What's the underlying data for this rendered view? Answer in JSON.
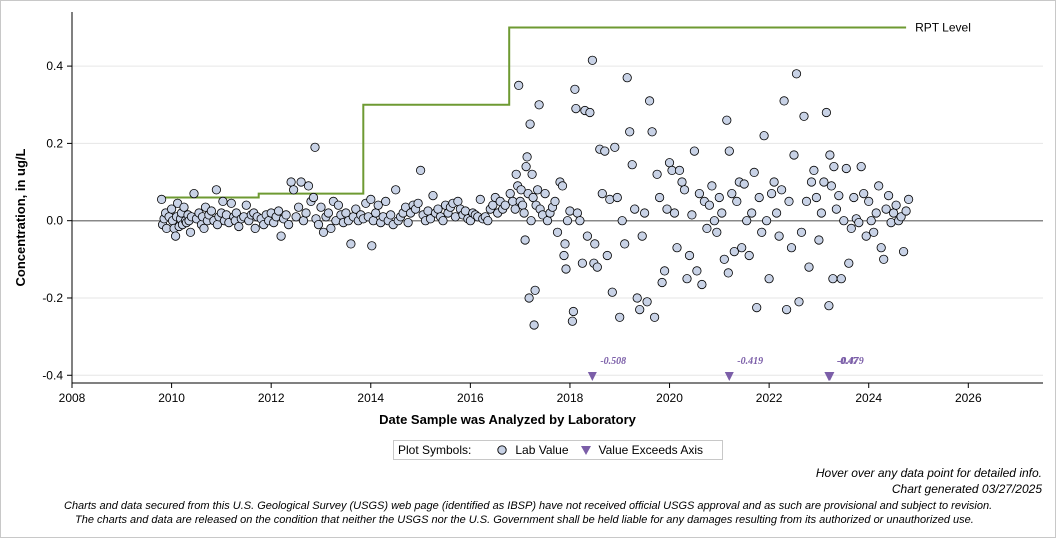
{
  "chart_data": {
    "type": "scatter",
    "xlabel": "Date Sample was Analyzed by Laboratory",
    "ylabel": "Concentration, in ug/L",
    "xlim": [
      2008.0,
      2027.5
    ],
    "ylim": [
      -0.42,
      0.54
    ],
    "x_ticks": [
      "2008",
      "2010",
      "2012",
      "2014",
      "2016",
      "2018",
      "2020",
      "2022",
      "2024",
      "2026"
    ],
    "y_ticks": [
      "-0.4",
      "-0.2",
      "0.0",
      "0.2",
      "0.4"
    ],
    "x_tick_values": [
      2008,
      2010,
      2012,
      2014,
      2016,
      2018,
      2020,
      2022,
      2024,
      2026
    ],
    "y_tick_values": [
      -0.4,
      -0.2,
      0.0,
      0.2,
      0.4
    ],
    "grid": "horizontal",
    "colors": {
      "lab_value_fill": "#c8d2e6",
      "exceed_marker": "#7b5ea8",
      "rpt_line": "#6e9a32",
      "zero_line": "#888888"
    },
    "rpt_level": {
      "label": "RPT Level",
      "steps": [
        {
          "x": 2009.8,
          "y": 0.06
        },
        {
          "x": 2011.75,
          "y": 0.06
        },
        {
          "x": 2011.75,
          "y": 0.07
        },
        {
          "x": 2013.85,
          "y": 0.07
        },
        {
          "x": 2013.85,
          "y": 0.3
        },
        {
          "x": 2016.78,
          "y": 0.3
        },
        {
          "x": 2016.78,
          "y": 0.5
        },
        {
          "x": 2024.75,
          "y": 0.5
        }
      ]
    },
    "exceeds_axis": [
      {
        "x": 2018.45,
        "value": -0.508,
        "label": "-0.508"
      },
      {
        "x": 2021.2,
        "value": -0.419,
        "label": "-0.419"
      },
      {
        "x": 2023.2,
        "value": -0.47,
        "label": "-0.47"
      },
      {
        "x": 2023.22,
        "value": -0.479,
        "label": "-0.479"
      }
    ],
    "lab_values": [
      [
        2009.8,
        0.055
      ],
      [
        2009.82,
        -0.01
      ],
      [
        2009.85,
        0.005
      ],
      [
        2009.88,
        0.02
      ],
      [
        2009.9,
        -0.02
      ],
      [
        2009.95,
        0.01
      ],
      [
        2010.0,
        0.03
      ],
      [
        2010.02,
        0.0
      ],
      [
        2010.05,
        -0.02
      ],
      [
        2010.08,
        -0.04
      ],
      [
        2010.1,
        0.01
      ],
      [
        2010.12,
        0.045
      ],
      [
        2010.15,
        -0.015
      ],
      [
        2010.18,
        0.005
      ],
      [
        2010.2,
        0.02
      ],
      [
        2010.22,
        -0.01
      ],
      [
        2010.25,
        0.035
      ],
      [
        2010.28,
        0.0
      ],
      [
        2010.3,
        -0.005
      ],
      [
        2010.33,
        0.015
      ],
      [
        2010.35,
        0.0
      ],
      [
        2010.38,
        -0.03
      ],
      [
        2010.4,
        0.01
      ],
      [
        2010.45,
        0.07
      ],
      [
        2010.5,
        0.005
      ],
      [
        2010.55,
        0.02
      ],
      [
        2010.6,
        -0.01
      ],
      [
        2010.62,
        0.01
      ],
      [
        2010.65,
        -0.02
      ],
      [
        2010.68,
        0.035
      ],
      [
        2010.72,
        0.0
      ],
      [
        2010.75,
        0.015
      ],
      [
        2010.8,
        0.025
      ],
      [
        2010.85,
        0.0
      ],
      [
        2010.9,
        0.08
      ],
      [
        2010.92,
        -0.01
      ],
      [
        2010.95,
        0.01
      ],
      [
        2011.0,
        0.02
      ],
      [
        2011.03,
        0.05
      ],
      [
        2011.06,
        0.0
      ],
      [
        2011.1,
        0.015
      ],
      [
        2011.15,
        -0.005
      ],
      [
        2011.2,
        0.045
      ],
      [
        2011.25,
        0.01
      ],
      [
        2011.28,
        0.0
      ],
      [
        2011.3,
        0.02
      ],
      [
        2011.35,
        -0.015
      ],
      [
        2011.4,
        0.005
      ],
      [
        2011.45,
        0.01
      ],
      [
        2011.5,
        0.04
      ],
      [
        2011.55,
        0.0
      ],
      [
        2011.6,
        0.015
      ],
      [
        2011.65,
        0.02
      ],
      [
        2011.68,
        -0.02
      ],
      [
        2011.72,
        0.01
      ],
      [
        2011.8,
        0.005
      ],
      [
        2011.85,
        -0.01
      ],
      [
        2011.9,
        0.015
      ],
      [
        2011.95,
        0.0
      ],
      [
        2012.0,
        0.02
      ],
      [
        2012.05,
        -0.005
      ],
      [
        2012.1,
        0.01
      ],
      [
        2012.15,
        0.025
      ],
      [
        2012.2,
        -0.04
      ],
      [
        2012.25,
        0.005
      ],
      [
        2012.3,
        0.015
      ],
      [
        2012.35,
        -0.01
      ],
      [
        2012.4,
        0.1
      ],
      [
        2012.45,
        0.08
      ],
      [
        2012.5,
        0.01
      ],
      [
        2012.55,
        0.035
      ],
      [
        2012.6,
        0.1
      ],
      [
        2012.65,
        0.0
      ],
      [
        2012.7,
        0.02
      ],
      [
        2012.75,
        0.09
      ],
      [
        2012.8,
        0.05
      ],
      [
        2012.85,
        0.06
      ],
      [
        2012.88,
        0.19
      ],
      [
        2012.9,
        0.005
      ],
      [
        2012.95,
        -0.01
      ],
      [
        2013.0,
        0.035
      ],
      [
        2013.05,
        -0.03
      ],
      [
        2013.1,
        0.01
      ],
      [
        2013.15,
        0.02
      ],
      [
        2013.2,
        -0.02
      ],
      [
        2013.25,
        0.05
      ],
      [
        2013.3,
        0.0
      ],
      [
        2013.35,
        0.04
      ],
      [
        2013.4,
        0.015
      ],
      [
        2013.45,
        -0.005
      ],
      [
        2013.5,
        0.02
      ],
      [
        2013.55,
        0.0
      ],
      [
        2013.6,
        -0.06
      ],
      [
        2013.65,
        0.01
      ],
      [
        2013.7,
        0.03
      ],
      [
        2013.75,
        0.0
      ],
      [
        2013.8,
        0.015
      ],
      [
        2013.85,
        0.005
      ],
      [
        2013.9,
        0.045
      ],
      [
        2013.95,
        0.01
      ],
      [
        2014.0,
        0.055
      ],
      [
        2014.02,
        -0.065
      ],
      [
        2014.05,
        0.0
      ],
      [
        2014.1,
        0.02
      ],
      [
        2014.15,
        0.04
      ],
      [
        2014.2,
        -0.005
      ],
      [
        2014.25,
        0.01
      ],
      [
        2014.3,
        0.05
      ],
      [
        2014.35,
        0.0
      ],
      [
        2014.4,
        0.015
      ],
      [
        2014.45,
        -0.01
      ],
      [
        2014.5,
        0.08
      ],
      [
        2014.55,
        0.0
      ],
      [
        2014.6,
        0.01
      ],
      [
        2014.65,
        0.02
      ],
      [
        2014.7,
        0.035
      ],
      [
        2014.75,
        -0.005
      ],
      [
        2014.8,
        0.02
      ],
      [
        2014.85,
        0.04
      ],
      [
        2014.9,
        0.03
      ],
      [
        2014.95,
        0.045
      ],
      [
        2015.0,
        0.13
      ],
      [
        2015.05,
        0.015
      ],
      [
        2015.1,
        0.0
      ],
      [
        2015.15,
        0.025
      ],
      [
        2015.2,
        0.005
      ],
      [
        2015.25,
        0.065
      ],
      [
        2015.3,
        0.02
      ],
      [
        2015.35,
        0.03
      ],
      [
        2015.4,
        0.01
      ],
      [
        2015.45,
        0.0
      ],
      [
        2015.5,
        0.04
      ],
      [
        2015.55,
        0.02
      ],
      [
        2015.6,
        0.035
      ],
      [
        2015.65,
        0.045
      ],
      [
        2015.7,
        0.01
      ],
      [
        2015.75,
        0.05
      ],
      [
        2015.8,
        0.03
      ],
      [
        2015.85,
        0.015
      ],
      [
        2015.9,
        0.025
      ],
      [
        2015.95,
        0.005
      ],
      [
        2016.0,
        0.0
      ],
      [
        2016.05,
        0.02
      ],
      [
        2016.1,
        0.015
      ],
      [
        2016.15,
        0.01
      ],
      [
        2016.2,
        0.055
      ],
      [
        2016.25,
        0.005
      ],
      [
        2016.3,
        0.01
      ],
      [
        2016.35,
        0.0
      ],
      [
        2016.4,
        0.03
      ],
      [
        2016.45,
        0.04
      ],
      [
        2016.5,
        0.06
      ],
      [
        2016.55,
        0.02
      ],
      [
        2016.6,
        0.05
      ],
      [
        2016.65,
        0.03
      ],
      [
        2016.7,
        0.04
      ],
      [
        2016.8,
        0.07
      ],
      [
        2016.85,
        0.05
      ],
      [
        2016.9,
        0.03
      ],
      [
        2016.92,
        0.12
      ],
      [
        2016.95,
        0.09
      ],
      [
        2016.97,
        0.35
      ],
      [
        2017.0,
        0.05
      ],
      [
        2017.02,
        0.08
      ],
      [
        2017.05,
        0.04
      ],
      [
        2017.08,
        0.02
      ],
      [
        2017.1,
        -0.05
      ],
      [
        2017.12,
        0.14
      ],
      [
        2017.14,
        0.165
      ],
      [
        2017.16,
        0.07
      ],
      [
        2017.18,
        -0.2
      ],
      [
        2017.2,
        0.25
      ],
      [
        2017.22,
        0.0
      ],
      [
        2017.24,
        0.12
      ],
      [
        2017.26,
        0.06
      ],
      [
        2017.28,
        -0.27
      ],
      [
        2017.3,
        -0.18
      ],
      [
        2017.32,
        0.04
      ],
      [
        2017.35,
        0.08
      ],
      [
        2017.38,
        0.3
      ],
      [
        2017.4,
        0.03
      ],
      [
        2017.45,
        0.015
      ],
      [
        2017.5,
        0.07
      ],
      [
        2017.55,
        0.0
      ],
      [
        2017.6,
        0.02
      ],
      [
        2017.65,
        0.035
      ],
      [
        2017.7,
        0.05
      ],
      [
        2017.75,
        -0.03
      ],
      [
        2017.8,
        0.1
      ],
      [
        2017.85,
        0.09
      ],
      [
        2017.88,
        -0.09
      ],
      [
        2017.9,
        -0.06
      ],
      [
        2017.92,
        -0.125
      ],
      [
        2017.95,
        0.0
      ],
      [
        2018.0,
        0.025
      ],
      [
        2018.05,
        -0.26
      ],
      [
        2018.07,
        -0.235
      ],
      [
        2018.1,
        0.34
      ],
      [
        2018.12,
        0.29
      ],
      [
        2018.15,
        0.02
      ],
      [
        2018.2,
        0.0
      ],
      [
        2018.25,
        -0.11
      ],
      [
        2018.3,
        0.285
      ],
      [
        2018.35,
        -0.04
      ],
      [
        2018.4,
        0.28
      ],
      [
        2018.45,
        0.415
      ],
      [
        2018.48,
        -0.11
      ],
      [
        2018.5,
        -0.06
      ],
      [
        2018.55,
        -0.12
      ],
      [
        2018.6,
        0.185
      ],
      [
        2018.65,
        0.07
      ],
      [
        2018.7,
        0.18
      ],
      [
        2018.75,
        -0.09
      ],
      [
        2018.8,
        0.055
      ],
      [
        2018.85,
        -0.185
      ],
      [
        2018.9,
        0.19
      ],
      [
        2018.95,
        0.06
      ],
      [
        2019.0,
        -0.25
      ],
      [
        2019.05,
        0.0
      ],
      [
        2019.1,
        -0.06
      ],
      [
        2019.15,
        0.37
      ],
      [
        2019.2,
        0.23
      ],
      [
        2019.25,
        0.145
      ],
      [
        2019.3,
        0.03
      ],
      [
        2019.35,
        -0.2
      ],
      [
        2019.4,
        -0.23
      ],
      [
        2019.45,
        -0.04
      ],
      [
        2019.5,
        0.02
      ],
      [
        2019.55,
        -0.21
      ],
      [
        2019.6,
        0.31
      ],
      [
        2019.65,
        0.23
      ],
      [
        2019.7,
        -0.25
      ],
      [
        2019.75,
        0.12
      ],
      [
        2019.8,
        0.06
      ],
      [
        2019.85,
        -0.16
      ],
      [
        2019.9,
        -0.13
      ],
      [
        2019.95,
        0.03
      ],
      [
        2020.0,
        0.15
      ],
      [
        2020.05,
        0.13
      ],
      [
        2020.1,
        0.02
      ],
      [
        2020.15,
        -0.07
      ],
      [
        2020.2,
        0.13
      ],
      [
        2020.25,
        0.1
      ],
      [
        2020.3,
        0.08
      ],
      [
        2020.35,
        -0.15
      ],
      [
        2020.4,
        -0.09
      ],
      [
        2020.45,
        0.015
      ],
      [
        2020.5,
        0.18
      ],
      [
        2020.55,
        -0.13
      ],
      [
        2020.6,
        0.07
      ],
      [
        2020.65,
        -0.165
      ],
      [
        2020.7,
        0.05
      ],
      [
        2020.75,
        -0.02
      ],
      [
        2020.8,
        0.04
      ],
      [
        2020.85,
        0.09
      ],
      [
        2020.9,
        0.0
      ],
      [
        2020.95,
        -0.03
      ],
      [
        2021.0,
        0.06
      ],
      [
        2021.05,
        0.02
      ],
      [
        2021.1,
        -0.1
      ],
      [
        2021.15,
        0.26
      ],
      [
        2021.18,
        -0.135
      ],
      [
        2021.2,
        0.18
      ],
      [
        2021.25,
        0.07
      ],
      [
        2021.3,
        -0.08
      ],
      [
        2021.35,
        0.05
      ],
      [
        2021.4,
        0.1
      ],
      [
        2021.45,
        -0.07
      ],
      [
        2021.5,
        0.095
      ],
      [
        2021.55,
        0.0
      ],
      [
        2021.6,
        -0.09
      ],
      [
        2021.65,
        0.02
      ],
      [
        2021.7,
        0.125
      ],
      [
        2021.75,
        -0.225
      ],
      [
        2021.8,
        0.06
      ],
      [
        2021.85,
        -0.03
      ],
      [
        2021.9,
        0.22
      ],
      [
        2021.95,
        0.0
      ],
      [
        2022.0,
        -0.15
      ],
      [
        2022.05,
        0.07
      ],
      [
        2022.1,
        0.1
      ],
      [
        2022.15,
        0.02
      ],
      [
        2022.2,
        -0.04
      ],
      [
        2022.25,
        0.08
      ],
      [
        2022.3,
        0.31
      ],
      [
        2022.35,
        -0.23
      ],
      [
        2022.4,
        0.05
      ],
      [
        2022.45,
        -0.07
      ],
      [
        2022.5,
        0.17
      ],
      [
        2022.55,
        0.38
      ],
      [
        2022.6,
        -0.21
      ],
      [
        2022.65,
        -0.03
      ],
      [
        2022.7,
        0.27
      ],
      [
        2022.75,
        0.05
      ],
      [
        2022.8,
        -0.12
      ],
      [
        2022.85,
        0.1
      ],
      [
        2022.9,
        0.13
      ],
      [
        2022.95,
        0.06
      ],
      [
        2023.0,
        -0.05
      ],
      [
        2023.05,
        0.02
      ],
      [
        2023.1,
        0.1
      ],
      [
        2023.15,
        0.28
      ],
      [
        2023.2,
        -0.22
      ],
      [
        2023.22,
        0.17
      ],
      [
        2023.25,
        0.09
      ],
      [
        2023.28,
        -0.15
      ],
      [
        2023.3,
        0.14
      ],
      [
        2023.35,
        0.03
      ],
      [
        2023.4,
        0.065
      ],
      [
        2023.45,
        -0.15
      ],
      [
        2023.5,
        0.0
      ],
      [
        2023.55,
        0.135
      ],
      [
        2023.6,
        -0.11
      ],
      [
        2023.65,
        -0.02
      ],
      [
        2023.7,
        0.06
      ],
      [
        2023.75,
        0.005
      ],
      [
        2023.8,
        -0.005
      ],
      [
        2023.85,
        0.14
      ],
      [
        2023.9,
        0.07
      ],
      [
        2023.95,
        -0.04
      ],
      [
        2024.0,
        0.05
      ],
      [
        2024.05,
        0.0
      ],
      [
        2024.1,
        -0.03
      ],
      [
        2024.15,
        0.02
      ],
      [
        2024.2,
        0.09
      ],
      [
        2024.25,
        -0.07
      ],
      [
        2024.3,
        -0.1
      ],
      [
        2024.35,
        0.03
      ],
      [
        2024.4,
        0.065
      ],
      [
        2024.45,
        -0.005
      ],
      [
        2024.5,
        0.02
      ],
      [
        2024.55,
        0.04
      ],
      [
        2024.6,
        0.0
      ],
      [
        2024.65,
        0.01
      ],
      [
        2024.7,
        -0.08
      ],
      [
        2024.75,
        0.025
      ],
      [
        2024.8,
        0.055
      ]
    ]
  },
  "legend": {
    "title": "Plot Symbols:",
    "lab_value": "Lab Value",
    "exceeds": "Value Exceeds Axis"
  },
  "footer": {
    "hover_note": "Hover over any data point for detailed info.",
    "generated": "Chart generated 03/27/2025",
    "disclaimer_1": "Charts and data secured from this U.S. Geological Survey (USGS) web page (identified as IBSP) have not received official USGS approval and as such are provisional and subject to revision.",
    "disclaimer_2": "The charts and data are released on the condition that neither the USGS nor the U.S. Government shall be held liable for any damages resulting from its authorized or unauthorized use."
  }
}
